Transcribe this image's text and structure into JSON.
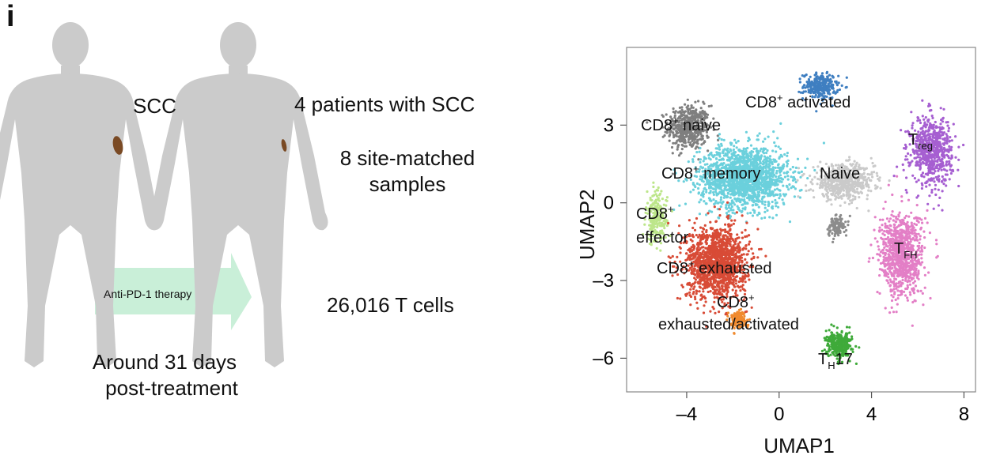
{
  "panel": {
    "letter": "i"
  },
  "schematic": {
    "tumor_label": "SCC",
    "therapy_label": "Anti-PD-1 therapy",
    "timing_line1": "Around 31 days",
    "timing_line2": "post-treatment",
    "patients": "4 patients with SCC",
    "samples_line1": "8 site-matched",
    "samples_line2": "samples",
    "cells": "26,016 T cells"
  },
  "colors": {
    "body": "#cbcbcb",
    "lesion": "#7a4a24",
    "arrow": "#c9efd8"
  },
  "chart_data": {
    "type": "scatter",
    "xlabel": "UMAP1",
    "ylabel": "UMAP2",
    "xlim": [
      -6.6,
      8.5
    ],
    "ylim": [
      -7.3,
      6.0
    ],
    "xticks": [
      -4,
      0,
      4,
      8
    ],
    "xtick_labels": [
      "–4",
      "0",
      "4",
      "8"
    ],
    "yticks": [
      -6,
      -3,
      0,
      3
    ],
    "ytick_labels": [
      "–6",
      "–3",
      "0",
      "3"
    ],
    "grid": false,
    "clusters": [
      {
        "id": "cd8_naive",
        "color": "#7f7f7f",
        "label_main": "CD8",
        "label_sup": "+",
        "label_sub": "",
        "label_rest": " naive",
        "cx": -3.9,
        "cy": 2.9,
        "sx": 0.9,
        "sy": 0.85,
        "n": 500
      },
      {
        "id": "cd8_activated",
        "color": "#3f7fc1",
        "label_main": "CD8",
        "label_sup": "+",
        "label_sub": "",
        "label_rest": " activated",
        "cx": 1.8,
        "cy": 4.5,
        "sx": 0.75,
        "sy": 0.5,
        "n": 260
      },
      {
        "id": "cd8_memory",
        "color": "#6bd0dc",
        "label_main": "CD8",
        "label_sup": "+",
        "label_sub": "",
        "label_rest": " memory",
        "cx": -1.5,
        "cy": 1.0,
        "sx": 1.9,
        "sy": 1.2,
        "n": 1700
      },
      {
        "id": "naive",
        "color": "#cacaca",
        "label_main": "Naive",
        "label_sup": "",
        "label_sub": "",
        "label_rest": "",
        "cx": 2.8,
        "cy": 0.8,
        "sx": 1.3,
        "sy": 0.65,
        "n": 600
      },
      {
        "id": "treg",
        "color": "#a65fd1",
        "label_main": "T",
        "label_sup": "",
        "label_sub": "reg",
        "label_rest": "",
        "cx": 6.6,
        "cy": 2.0,
        "sx": 0.9,
        "sy": 1.3,
        "n": 650
      },
      {
        "id": "cd8_effector",
        "color": "#bde68a",
        "label_main": "CD8",
        "label_sup": "+",
        "label_sub": "",
        "label_rest": "",
        "cx": -5.3,
        "cy": -0.6,
        "sx": 0.45,
        "sy": 1.0,
        "n": 220
      },
      {
        "id": "cd8_exhausted",
        "color": "#d84b36",
        "label_main": "CD8",
        "label_sup": "+",
        "label_sub": "",
        "label_rest": " exhausted",
        "cx": -2.7,
        "cy": -2.3,
        "sx": 1.3,
        "sy": 1.4,
        "n": 1400
      },
      {
        "id": "cd8_exh_act",
        "color": "#f08a2e",
        "label_main": "CD8",
        "label_sup": "+",
        "label_sub": "",
        "label_rest": "",
        "cx": -1.8,
        "cy": -4.5,
        "sx": 0.4,
        "sy": 0.35,
        "n": 120
      },
      {
        "id": "tfh",
        "color": "#e37fc6",
        "label_main": "T",
        "label_sup": "",
        "label_sub": "FH",
        "label_rest": "",
        "cx": 5.3,
        "cy": -2.0,
        "sx": 0.95,
        "sy": 1.6,
        "n": 900
      },
      {
        "id": "th17",
        "color": "#3faa3a",
        "label_main": "T",
        "label_sup": "",
        "label_sub": "H",
        "label_rest": "17",
        "cx": 2.6,
        "cy": -5.5,
        "sx": 0.55,
        "sy": 0.5,
        "n": 300
      },
      {
        "id": "grey_mid",
        "color": "#8c8c8c",
        "label_main": "",
        "label_sup": "",
        "label_sub": "",
        "label_rest": "",
        "cx": 2.5,
        "cy": -0.9,
        "sx": 0.4,
        "sy": 0.4,
        "n": 120
      }
    ],
    "labels": {
      "cd8_effector_line2": "effector",
      "cd8_exh_act_line2": "exhausted/activated"
    }
  }
}
